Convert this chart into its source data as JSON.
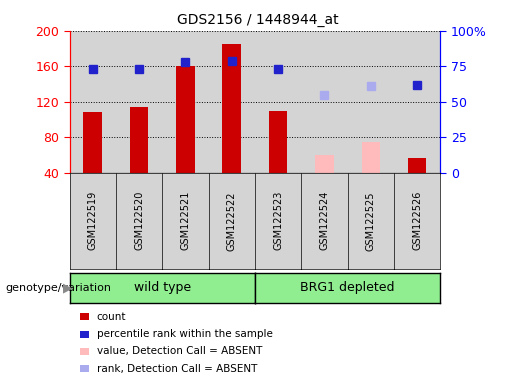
{
  "title": "GDS2156 / 1448944_at",
  "samples": [
    "GSM122519",
    "GSM122520",
    "GSM122521",
    "GSM122522",
    "GSM122523",
    "GSM122524",
    "GSM122525",
    "GSM122526"
  ],
  "count_values": [
    108,
    114,
    160,
    185,
    110,
    60,
    75,
    57
  ],
  "count_colors": [
    "#cc0000",
    "#cc0000",
    "#cc0000",
    "#cc0000",
    "#cc0000",
    "#ffbbbb",
    "#ffbbbb",
    "#cc0000"
  ],
  "rank_values": [
    73,
    73,
    78,
    79,
    73,
    55,
    61,
    62
  ],
  "rank_colors": [
    "#2222cc",
    "#2222cc",
    "#2222cc",
    "#2222cc",
    "#2222cc",
    "#aaaaee",
    "#aaaaee",
    "#2222cc"
  ],
  "ylim_left": [
    40,
    200
  ],
  "ylim_right": [
    0,
    100
  ],
  "yticks_left": [
    40,
    80,
    120,
    160,
    200
  ],
  "yticks_right": [
    0,
    25,
    50,
    75,
    100
  ],
  "ytick_labels_right": [
    "0",
    "25",
    "50",
    "75",
    "100%"
  ],
  "group1_label": "wild type",
  "group2_label": "BRG1 depleted",
  "group1_count": 4,
  "genotype_label": "genotype/variation",
  "legend_items": [
    {
      "label": "count",
      "color": "#cc0000"
    },
    {
      "label": "percentile rank within the sample",
      "color": "#2222cc"
    },
    {
      "label": "value, Detection Call = ABSENT",
      "color": "#ffbbbb"
    },
    {
      "label": "rank, Detection Call = ABSENT",
      "color": "#aaaaee"
    }
  ],
  "bar_width": 0.4,
  "col_bg_color": "#d4d4d4",
  "group_bg": "#90ee90",
  "plot_bg": "#ffffff"
}
